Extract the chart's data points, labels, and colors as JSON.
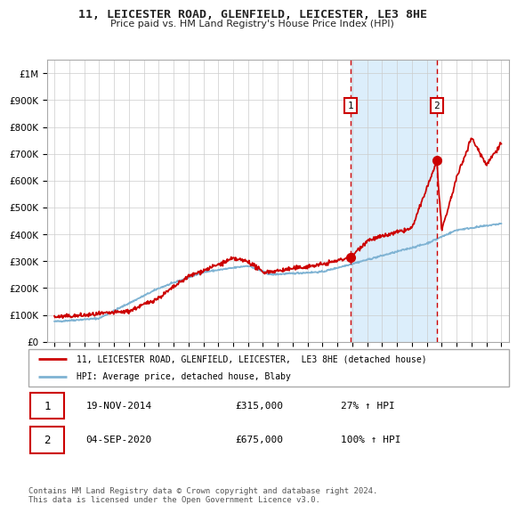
{
  "title": "11, LEICESTER ROAD, GLENFIELD, LEICESTER, LE3 8HE",
  "subtitle": "Price paid vs. HM Land Registry's House Price Index (HPI)",
  "legend_line1": "11, LEICESTER ROAD, GLENFIELD, LEICESTER,  LE3 8HE (detached house)",
  "legend_line2": "HPI: Average price, detached house, Blaby",
  "footer": "Contains HM Land Registry data © Crown copyright and database right 2024.\nThis data is licensed under the Open Government Licence v3.0.",
  "sale1_date": 2014.88,
  "sale1_price": 315000,
  "sale1_label": "19-NOV-2014",
  "sale1_pct": "27% ↑ HPI",
  "sale2_date": 2020.67,
  "sale2_price": 675000,
  "sale2_label": "04-SEP-2020",
  "sale2_pct": "100% ↑ HPI",
  "ylim": [
    0,
    1050000
  ],
  "xlim": [
    1994.5,
    2025.5
  ],
  "bg_color": "#ffffff",
  "plot_bg": "#ffffff",
  "red_color": "#cc0000",
  "blue_color": "#7fb3d3",
  "grid_color": "#cccccc",
  "span_color": "#dceefb",
  "box_marker_color": "#cc0000"
}
